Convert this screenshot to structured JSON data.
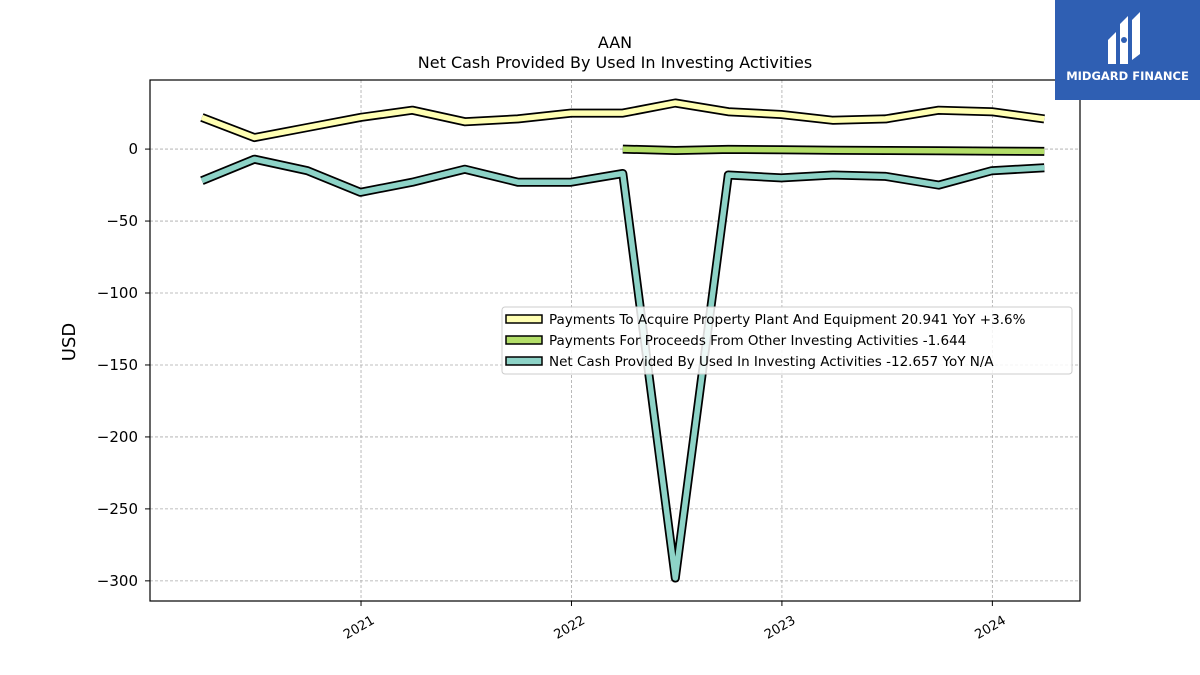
{
  "chart_data": {
    "type": "line",
    "title": "AAN",
    "subtitle": "Net Cash Provided By Used In Investing Activities",
    "ylabel": "USD",
    "xlabel": "",
    "xlim": [
      "2020-01-01",
      "2024-06-01"
    ],
    "ylim": [
      -314,
      48
    ],
    "x_ticks": [
      "2021-01-01",
      "2022-01-01",
      "2023-01-01",
      "2024-01-01"
    ],
    "x_tick_labels": [
      "2021",
      "2022",
      "2023",
      "2024"
    ],
    "y_ticks": [
      0,
      -50,
      -100,
      -150,
      -200,
      -250,
      -300
    ],
    "y_tick_labels": [
      "0",
      "−50",
      "−100",
      "−150",
      "−200",
      "−250",
      "−300"
    ],
    "grid": true,
    "legend_position": "center-right",
    "series": [
      {
        "name": "Payments To Acquire Property Plant And Equipment  20.941 YoY +3.6%",
        "color": "#ffffb3",
        "x": [
          "2020-03-31",
          "2020-06-30",
          "2020-09-30",
          "2020-12-31",
          "2021-03-31",
          "2021-06-30",
          "2021-09-30",
          "2021-12-31",
          "2022-03-31",
          "2022-06-30",
          "2022-09-30",
          "2022-12-31",
          "2023-03-31",
          "2023-06-30",
          "2023-09-30",
          "2023-12-31",
          "2024-03-31"
        ],
        "values": [
          22,
          8,
          15,
          22,
          27,
          19,
          21,
          25,
          25,
          32,
          26,
          24,
          20,
          21,
          27,
          26,
          21
        ]
      },
      {
        "name": "Payments For Proceeds From Other Investing Activities  -1.644",
        "color": "#b3de69",
        "x": [
          "2022-03-31",
          "2022-06-30",
          "2022-09-30",
          "2022-12-31",
          "2023-03-31",
          "2023-06-30",
          "2023-09-30",
          "2023-12-31",
          "2024-03-31"
        ],
        "values": [
          0,
          -1,
          -0.2,
          -0.5,
          -0.8,
          -1,
          -1.2,
          -1.4,
          -1.6
        ]
      },
      {
        "name": "Net Cash Provided By Used In Investing Activities  -12.657 YoY N/A",
        "color": "#8dd3c7",
        "x": [
          "2020-03-31",
          "2020-06-30",
          "2020-09-30",
          "2020-12-31",
          "2021-03-31",
          "2021-06-30",
          "2021-09-30",
          "2021-12-31",
          "2022-03-31",
          "2022-06-30",
          "2022-09-30",
          "2022-12-31",
          "2023-03-31",
          "2023-06-30",
          "2023-09-30",
          "2023-12-31",
          "2024-03-31"
        ],
        "values": [
          -22,
          -7,
          -15,
          -30,
          -23,
          -14,
          -23,
          -23,
          -17,
          -298,
          -18,
          -20,
          -18,
          -19,
          -25,
          -15,
          -13
        ]
      }
    ]
  },
  "logo": {
    "text": "MIDGARD FINANCE",
    "color": "#2f5fb3"
  }
}
